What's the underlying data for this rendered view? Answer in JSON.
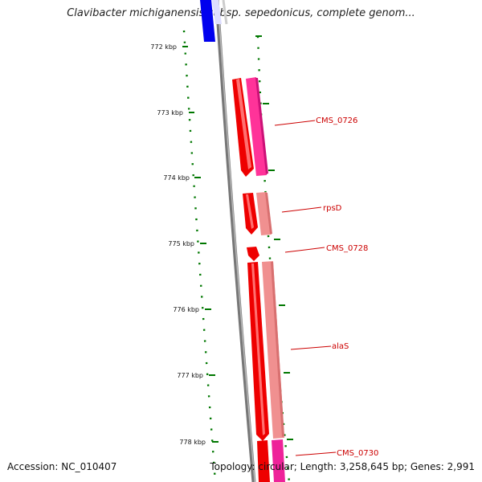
{
  "title": "Clavibacter michiganensis subsp. sepedonicus, complete genom...",
  "accession": "Accession: NC_010407",
  "summary": "Topology: circular; Length: 3,258,645 bp; Genes: 2,991",
  "scale": {
    "unit": "kbp",
    "ticks": [
      {
        "label": "772 kbp"
      },
      {
        "label": "773 kbp"
      },
      {
        "label": "774 kbp"
      },
      {
        "label": "775 kbp"
      },
      {
        "label": "776 kbp"
      },
      {
        "label": "777 kbp"
      },
      {
        "label": "778 kbp"
      }
    ]
  },
  "genes": [
    {
      "label": "CMS_0726"
    },
    {
      "label": "rpsD"
    },
    {
      "label": "CMS_0728"
    },
    {
      "label": "alaS"
    },
    {
      "label": "CMS_0730"
    }
  ],
  "colors": {
    "backbone": "#888888",
    "cds": "#ee0000",
    "cds_light": "#f09090",
    "cds_pink": "#ff33aa",
    "previous_feature": "#0000ee",
    "tick": "#007700",
    "label": "#cc0000"
  }
}
